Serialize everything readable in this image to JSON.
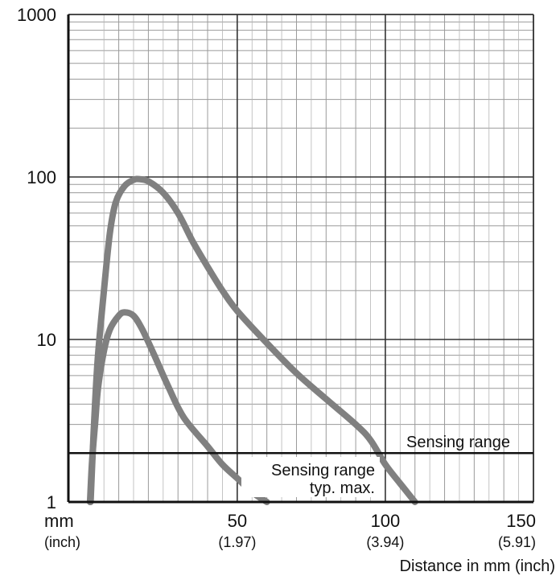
{
  "chart_data": {
    "type": "line",
    "title": "",
    "xlabel": "Distance in mm (inch)",
    "ylabel": "",
    "xlim": [
      -7,
      150
    ],
    "ylim": [
      1,
      1000
    ],
    "yscale": "log",
    "grid": true,
    "x_ticks": [
      {
        "value": 0,
        "label": "mm",
        "sub": "(inch)"
      },
      {
        "value": 50,
        "label": "50",
        "sub": "(1.97)"
      },
      {
        "value": 100,
        "label": "100",
        "sub": "(3.94)"
      },
      {
        "value": 150,
        "label": "150",
        "sub": "(5.91)"
      }
    ],
    "y_ticks": [
      {
        "value": 1,
        "label": "1"
      },
      {
        "value": 10,
        "label": "10"
      },
      {
        "value": 100,
        "label": "100"
      },
      {
        "value": 1000,
        "label": "1000"
      }
    ],
    "series": [
      {
        "name": "",
        "color": "#808080",
        "points": [
          [
            0.5,
            1
          ],
          [
            1.2,
            2
          ],
          [
            2,
            4
          ],
          [
            3,
            8
          ],
          [
            5,
            20
          ],
          [
            7,
            45
          ],
          [
            9,
            70
          ],
          [
            12,
            88
          ],
          [
            15,
            96
          ],
          [
            17,
            97
          ],
          [
            20,
            94
          ],
          [
            25,
            80
          ],
          [
            30,
            60
          ],
          [
            35,
            40
          ],
          [
            40,
            28
          ],
          [
            45,
            20
          ],
          [
            50,
            15
          ],
          [
            60,
            9.5
          ],
          [
            70,
            6.2
          ],
          [
            80,
            4.3
          ],
          [
            90,
            3
          ],
          [
            95,
            2.4
          ],
          [
            100,
            1.7
          ],
          [
            105,
            1.3
          ],
          [
            110,
            1
          ]
        ]
      },
      {
        "name": "",
        "color": "#808080",
        "points": [
          [
            0.3,
            1
          ],
          [
            1,
            1.8
          ],
          [
            2,
            3
          ],
          [
            3,
            5
          ],
          [
            5,
            8.5
          ],
          [
            7,
            11.5
          ],
          [
            10,
            14
          ],
          [
            12,
            14.7
          ],
          [
            15,
            14
          ],
          [
            18,
            11.5
          ],
          [
            22,
            8
          ],
          [
            27,
            5
          ],
          [
            32,
            3.3
          ],
          [
            40,
            2.2
          ],
          [
            45,
            1.7
          ],
          [
            50,
            1.4
          ],
          [
            55,
            1.15
          ],
          [
            60,
            1
          ]
        ]
      }
    ],
    "reference_line": {
      "value": 2,
      "label": "Sensing range"
    },
    "annotation": {
      "line1": "Sensing range",
      "line2": "typ. max."
    }
  }
}
